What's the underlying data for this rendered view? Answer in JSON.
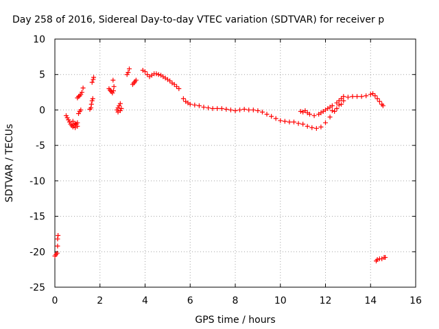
{
  "chart_data": {
    "type": "scatter",
    "title": "Day 258 of 2016, Sidereal Day-to-day VTEC variation (SDTVAR) for receiver p",
    "xlabel": "GPS time / hours",
    "ylabel": "SDTVAR / TECUs",
    "xlim": [
      0,
      16
    ],
    "ylim": [
      -25,
      10
    ],
    "xticks": [
      "0",
      "2",
      "4",
      "6",
      "8",
      "10",
      "12",
      "14",
      "16"
    ],
    "yticks": [
      "10",
      "5",
      "0",
      "-5",
      "-10",
      "-15",
      "-20",
      "-25"
    ],
    "grid": true,
    "marker": "plus",
    "color": "#ff0000",
    "series": [
      {
        "points": [
          [
            0.0,
            -20.6
          ],
          [
            0.05,
            -20.4
          ],
          [
            0.1,
            -20.2
          ],
          [
            0.12,
            -19.2
          ],
          [
            0.12,
            -18.2
          ],
          [
            0.14,
            -17.7
          ],
          [
            0.5,
            -0.8
          ],
          [
            0.55,
            -1.1
          ],
          [
            0.6,
            -1.4
          ],
          [
            0.65,
            -1.7
          ],
          [
            0.7,
            -2.0
          ],
          [
            0.75,
            -2.2
          ],
          [
            0.8,
            -2.4
          ],
          [
            0.85,
            -2.1
          ],
          [
            0.9,
            -2.5
          ],
          [
            0.95,
            -2.0
          ],
          [
            1.0,
            -1.8
          ],
          [
            0.8,
            -1.6
          ],
          [
            0.9,
            -1.9
          ],
          [
            1.0,
            -2.3
          ],
          [
            1.0,
            1.7
          ],
          [
            1.05,
            1.9
          ],
          [
            1.1,
            2.0
          ],
          [
            1.15,
            2.2
          ],
          [
            1.2,
            2.5
          ],
          [
            1.25,
            3.1
          ],
          [
            1.05,
            -0.5
          ],
          [
            1.1,
            -0.2
          ],
          [
            1.15,
            0.0
          ],
          [
            1.55,
            0.1
          ],
          [
            1.6,
            0.3
          ],
          [
            1.62,
            0.8
          ],
          [
            1.65,
            1.3
          ],
          [
            1.68,
            1.6
          ],
          [
            1.65,
            3.9
          ],
          [
            1.7,
            4.3
          ],
          [
            1.72,
            4.6
          ],
          [
            2.4,
            3.0
          ],
          [
            2.45,
            2.8
          ],
          [
            2.5,
            2.6
          ],
          [
            2.55,
            2.4
          ],
          [
            2.6,
            2.7
          ],
          [
            2.62,
            3.3
          ],
          [
            2.58,
            4.2
          ],
          [
            2.75,
            0.0
          ],
          [
            2.8,
            0.3
          ],
          [
            2.85,
            0.6
          ],
          [
            2.9,
            0.9
          ],
          [
            2.95,
            0.2
          ],
          [
            2.8,
            -0.3
          ],
          [
            2.9,
            -0.1
          ],
          [
            3.2,
            5.0
          ],
          [
            3.25,
            5.3
          ],
          [
            3.3,
            5.8
          ],
          [
            3.45,
            3.6
          ],
          [
            3.5,
            3.8
          ],
          [
            3.55,
            4.0
          ],
          [
            3.6,
            4.2
          ],
          [
            3.9,
            5.6
          ],
          [
            4.0,
            5.4
          ],
          [
            4.1,
            5.0
          ],
          [
            4.2,
            4.7
          ],
          [
            4.3,
            4.9
          ],
          [
            4.4,
            5.1
          ],
          [
            4.5,
            5.1
          ],
          [
            4.6,
            5.0
          ],
          [
            4.7,
            4.9
          ],
          [
            4.8,
            4.7
          ],
          [
            4.9,
            4.5
          ],
          [
            5.0,
            4.3
          ],
          [
            5.1,
            4.1
          ],
          [
            5.2,
            3.8
          ],
          [
            5.3,
            3.6
          ],
          [
            5.4,
            3.3
          ],
          [
            5.5,
            3.0
          ],
          [
            5.7,
            1.6
          ],
          [
            5.8,
            1.2
          ],
          [
            5.9,
            1.0
          ],
          [
            6.0,
            0.8
          ],
          [
            6.2,
            0.7
          ],
          [
            6.4,
            0.6
          ],
          [
            6.6,
            0.4
          ],
          [
            6.8,
            0.3
          ],
          [
            7.0,
            0.2
          ],
          [
            7.2,
            0.2
          ],
          [
            7.4,
            0.2
          ],
          [
            7.6,
            0.1
          ],
          [
            7.8,
            0.0
          ],
          [
            8.0,
            -0.1
          ],
          [
            8.2,
            0.0
          ],
          [
            8.4,
            0.1
          ],
          [
            8.6,
            0.0
          ],
          [
            8.8,
            0.0
          ],
          [
            9.0,
            -0.1
          ],
          [
            9.2,
            -0.3
          ],
          [
            9.4,
            -0.6
          ],
          [
            9.6,
            -0.9
          ],
          [
            9.8,
            -1.2
          ],
          [
            10.0,
            -1.5
          ],
          [
            10.2,
            -1.6
          ],
          [
            10.4,
            -1.7
          ],
          [
            10.6,
            -1.7
          ],
          [
            10.8,
            -1.9
          ],
          [
            11.0,
            -2.0
          ],
          [
            11.2,
            -2.3
          ],
          [
            11.4,
            -2.5
          ],
          [
            11.6,
            -2.6
          ],
          [
            11.8,
            -2.4
          ],
          [
            12.0,
            -1.8
          ],
          [
            12.2,
            -1.0
          ],
          [
            12.4,
            -0.2
          ],
          [
            12.6,
            0.7
          ],
          [
            12.8,
            1.3
          ],
          [
            13.0,
            1.8
          ],
          [
            13.2,
            1.9
          ],
          [
            13.4,
            1.9
          ],
          [
            13.6,
            1.9
          ],
          [
            13.8,
            2.0
          ],
          [
            14.0,
            2.2
          ],
          [
            14.1,
            2.3
          ],
          [
            14.2,
            2.0
          ],
          [
            14.3,
            1.6
          ],
          [
            14.4,
            1.2
          ],
          [
            14.5,
            0.8
          ],
          [
            14.55,
            0.6
          ],
          [
            10.9,
            -0.2
          ],
          [
            11.0,
            -0.3
          ],
          [
            11.1,
            -0.1
          ],
          [
            11.2,
            -0.4
          ],
          [
            11.3,
            -0.6
          ],
          [
            11.5,
            -0.8
          ],
          [
            11.7,
            -0.6
          ],
          [
            11.8,
            -0.4
          ],
          [
            11.9,
            -0.2
          ],
          [
            12.0,
            0.0
          ],
          [
            12.1,
            0.2
          ],
          [
            12.2,
            0.4
          ],
          [
            12.3,
            0.6
          ],
          [
            12.5,
            1.0
          ],
          [
            12.6,
            1.3
          ],
          [
            12.7,
            1.6
          ],
          [
            12.8,
            1.9
          ],
          [
            12.3,
            -0.1
          ],
          [
            12.5,
            0.2
          ],
          [
            12.7,
            0.8
          ],
          [
            14.25,
            -21.3
          ],
          [
            14.3,
            -21.1
          ],
          [
            14.4,
            -21.0
          ],
          [
            14.5,
            -21.0
          ],
          [
            14.6,
            -20.8
          ],
          [
            14.65,
            -20.8
          ]
        ]
      }
    ]
  }
}
